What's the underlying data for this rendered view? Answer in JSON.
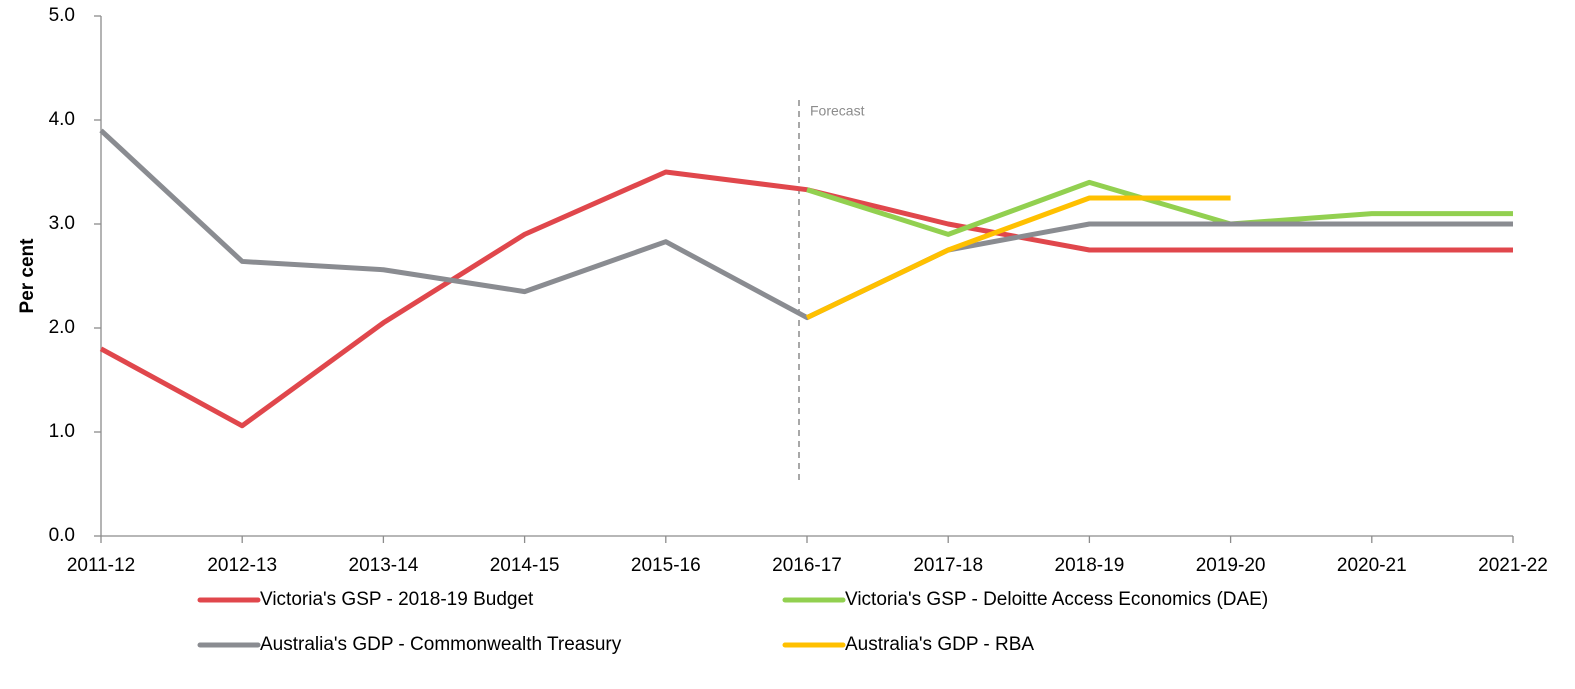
{
  "chart_data": {
    "type": "line",
    "y_label": "Per cent",
    "annotation": "Forecast",
    "categories": [
      "2011-12",
      "2012-13",
      "2013-14",
      "2014-15",
      "2015-16",
      "2016-17",
      "2017-18",
      "2018-19",
      "2019-20",
      "2020-21",
      "2021-22"
    ],
    "series": [
      {
        "name": "Victoria's GSP - 2018-19 Budget",
        "color": "#e0474c",
        "values": [
          1.8,
          1.06,
          2.05,
          2.9,
          3.5,
          3.33,
          3.0,
          2.75,
          2.75,
          2.75,
          2.75
        ]
      },
      {
        "name": "Victoria's GSP - Deloitte Access Economics (DAE)",
        "color": "#92d050",
        "values": [
          null,
          null,
          null,
          null,
          null,
          3.33,
          2.9,
          3.4,
          3.0,
          3.1,
          3.1
        ]
      },
      {
        "name": "Australia's GDP - Commonwealth Treasury",
        "color": "#8a8c91",
        "values": [
          3.9,
          2.64,
          2.56,
          2.35,
          2.83,
          2.1,
          2.75,
          3.0,
          3.0,
          3.0,
          3.0
        ]
      },
      {
        "name": "Australia's GDP - RBA",
        "color": "#ffc000",
        "values": [
          null,
          null,
          null,
          null,
          null,
          2.1,
          2.75,
          3.25,
          3.25,
          null,
          null
        ]
      }
    ],
    "ylim": [
      0,
      5
    ],
    "yticks": [
      {
        "value": 0,
        "label": "0.0"
      },
      {
        "value": 1,
        "label": "1.0"
      },
      {
        "value": 2,
        "label": "2.0"
      },
      {
        "value": 3,
        "label": "3.0"
      },
      {
        "value": 4,
        "label": "4.0"
      },
      {
        "value": 5,
        "label": "5.0"
      }
    ],
    "grid": false,
    "legend": "bottom"
  }
}
